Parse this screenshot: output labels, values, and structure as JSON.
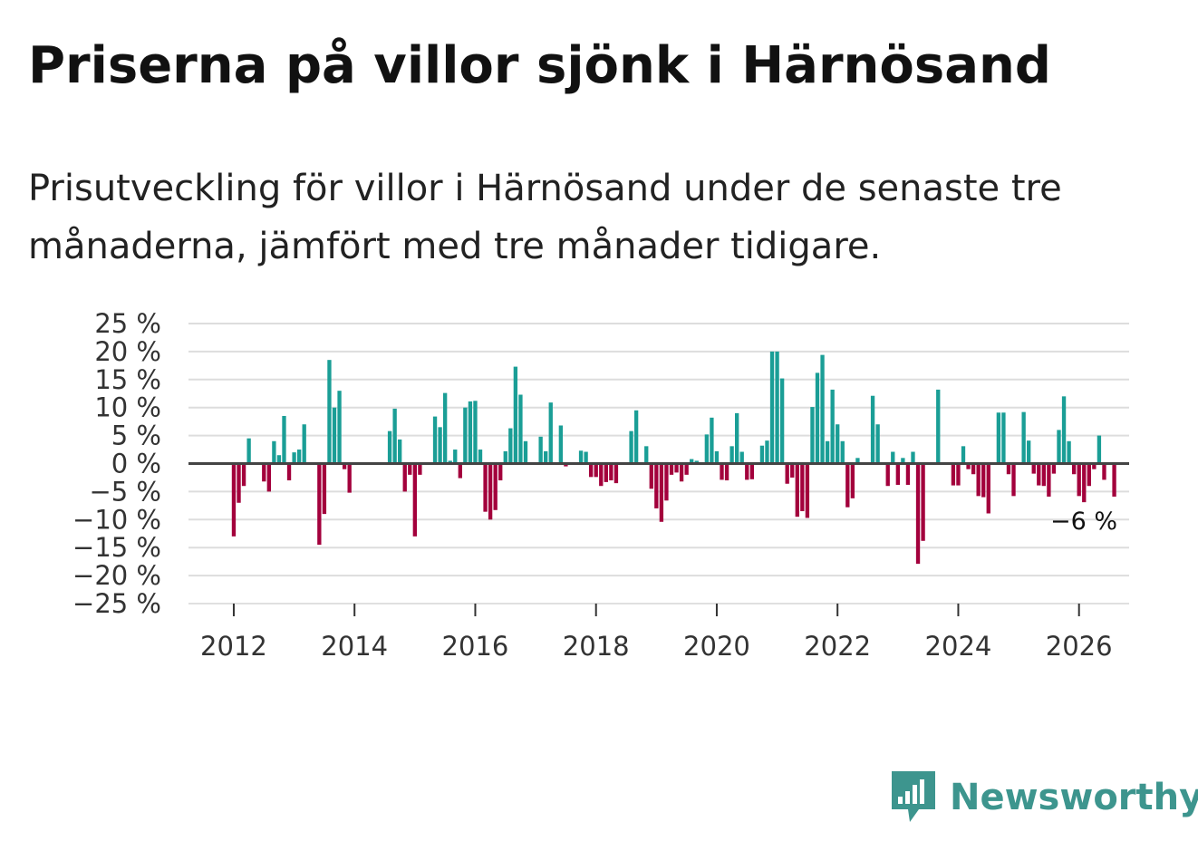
{
  "title": "Priserna på villor sjönk i Härnösand",
  "subtitle": "Prisutveckling för villor i Härnösand under de senaste tre månaderna, jämfört med tre månader tidigare.",
  "brand": {
    "name": "Newsworthy",
    "color": "#3d958e"
  },
  "colors": {
    "positive": "#1a9e96",
    "negative": "#a3003c",
    "grid": "#dddddd",
    "zero": "#444444"
  },
  "chart_data": {
    "type": "bar",
    "title": "",
    "xlabel": "",
    "ylabel": "",
    "ylim": [
      -25,
      25
    ],
    "y_ticks": [
      {
        "value": 25,
        "label": "25 %"
      },
      {
        "value": 20,
        "label": "20 %"
      },
      {
        "value": 15,
        "label": "15 %"
      },
      {
        "value": 10,
        "label": "10 %"
      },
      {
        "value": 5,
        "label": "5 %"
      },
      {
        "value": 0,
        "label": "0 %"
      },
      {
        "value": -5,
        "label": "−5 %"
      },
      {
        "value": -10,
        "label": "−10 %"
      },
      {
        "value": -15,
        "label": "−15 %"
      },
      {
        "value": -20,
        "label": "−20 %"
      },
      {
        "value": -25,
        "label": "−25 %"
      }
    ],
    "x_ticks": [
      {
        "year": 2012,
        "label": "2012"
      },
      {
        "year": 2014,
        "label": "2014"
      },
      {
        "year": 2016,
        "label": "2016"
      },
      {
        "year": 2018,
        "label": "2018"
      },
      {
        "year": 2020,
        "label": "2020"
      },
      {
        "year": 2022,
        "label": "2022"
      },
      {
        "year": 2024,
        "label": "2024"
      },
      {
        "year": 2026,
        "label": "2026"
      }
    ],
    "x_domain": [
      2011.25,
      2026.83
    ],
    "grid": true,
    "end_label": "−6 %",
    "series": [
      {
        "values": [
          -13,
          -7,
          -4,
          4.5,
          0,
          0,
          -3.2,
          -5,
          4,
          1.5,
          8.5,
          -3,
          2,
          2.5,
          7,
          0,
          0,
          -14.5,
          -9,
          18.5,
          10,
          13,
          -1,
          -5.2,
          0,
          0,
          0,
          0,
          0,
          0,
          0,
          5.8,
          9.8,
          4.3,
          -5,
          -2,
          -13,
          -2,
          0,
          0,
          8.4,
          6.5,
          12.6,
          0.5,
          2.5,
          -2.6,
          10,
          11.1,
          11.2,
          2.5,
          -8.6,
          -10,
          -8.3,
          -3,
          2.2,
          6.3,
          17.3,
          12.3,
          4,
          0,
          0,
          4.8,
          2.2,
          10.9,
          0,
          6.8,
          -0.5,
          0,
          0,
          2.3,
          2.1,
          -2.4,
          -2.4,
          -4,
          -3.3,
          -3,
          -3.5,
          0,
          0,
          5.8,
          9.5,
          0,
          3.1,
          -4.5,
          -8,
          -10.4,
          -6.6,
          -2,
          -1.6,
          -3.2,
          -2,
          0.8,
          0.5,
          0,
          5.2,
          8.2,
          2.2,
          -2.9,
          -3,
          3.1,
          9,
          2.1,
          -2.9,
          -2.8,
          0,
          3.2,
          4.1,
          20,
          20,
          15.2,
          -3.6,
          -2.5,
          -9.5,
          -8.5,
          -9.7,
          10.1,
          16.2,
          19.4,
          4,
          13.2,
          7,
          4,
          -7.8,
          -6.2,
          1,
          0,
          0,
          12.1,
          7,
          0,
          -4,
          2.1,
          -3.8,
          1,
          -3.8,
          2.1,
          -17.9,
          -13.8,
          0,
          0,
          13.2,
          0,
          0,
          -3.9,
          -3.9,
          3.1,
          -1,
          -1.9,
          -5.8,
          -6,
          -8.9,
          0,
          9.1,
          9.1,
          -1.9,
          -5.8,
          0,
          9.2,
          4.1,
          -1.8,
          -3.9,
          -4,
          -5.9,
          -1.8,
          6,
          12,
          4,
          -1.9,
          -5.8,
          -6.9,
          -4,
          -1,
          5,
          -2.9,
          0,
          -5.9
        ]
      }
    ]
  }
}
